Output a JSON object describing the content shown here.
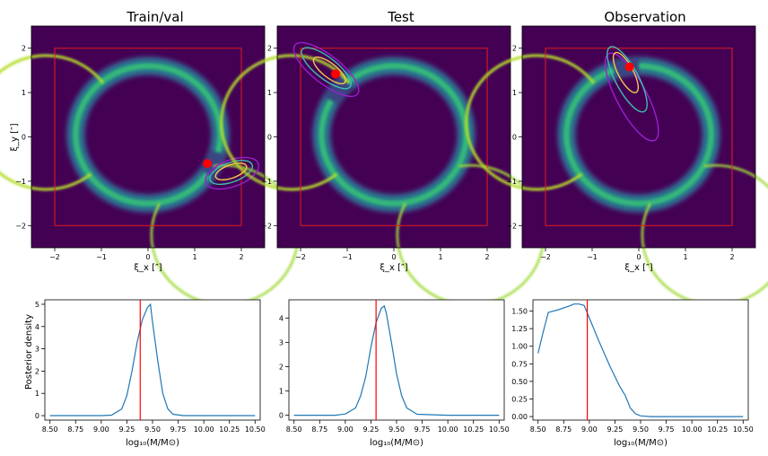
{
  "panels": [
    {
      "title": "Train/val",
      "xlabel": "ξ_x [″]",
      "ylabel": "ξ_y [″]",
      "xticks": [
        "−2",
        "−1",
        "0",
        "1",
        "2"
      ],
      "yticks": [
        "−2",
        "−1",
        "0",
        "1",
        "2"
      ],
      "ring_gap_angle_deg": -25,
      "box": [
        -2,
        2
      ],
      "point": {
        "x": 1.27,
        "y": -0.6
      },
      "contours": [
        {
          "color": "#9b1fd1",
          "cx": 1.8,
          "cy": -0.82,
          "rx": 0.6,
          "ry": 0.3,
          "rot": 20
        },
        {
          "color": "#3fbfb0",
          "cx": 1.78,
          "cy": -0.8,
          "rx": 0.48,
          "ry": 0.22,
          "rot": 20
        },
        {
          "color": "#f2c94c",
          "cx": 1.78,
          "cy": -0.78,
          "rx": 0.35,
          "ry": 0.15,
          "rot": 20
        }
      ]
    },
    {
      "title": "Test",
      "xlabel": "ξ_x [″]",
      "ylabel": "",
      "xticks": [
        "−2",
        "−1",
        "0",
        "1",
        "2"
      ],
      "yticks": [
        "−2",
        "−1",
        "0",
        "1",
        "2"
      ],
      "ring_gap_angle_deg": 140,
      "box": [
        -2,
        2
      ],
      "point": {
        "x": -1.25,
        "y": 1.42
      },
      "contours": [
        {
          "color": "#9b1fd1",
          "cx": -1.45,
          "cy": 1.52,
          "rx": 0.85,
          "ry": 0.32,
          "rot": -38
        },
        {
          "color": "#3fbfb0",
          "cx": -1.45,
          "cy": 1.55,
          "rx": 0.65,
          "ry": 0.24,
          "rot": -38
        },
        {
          "color": "#f2c94c",
          "cx": -1.38,
          "cy": 1.5,
          "rx": 0.42,
          "ry": 0.16,
          "rot": -38
        }
      ]
    },
    {
      "title": "Observation",
      "xlabel": "ξ_x [″]",
      "ylabel": "",
      "xticks": [
        "−2",
        "−1",
        "0",
        "1",
        "2"
      ],
      "yticks": [
        "−2",
        "−1",
        "0",
        "1",
        "2"
      ],
      "ring_gap_angle_deg": 100,
      "box": [
        -2,
        2
      ],
      "point": {
        "x": -0.2,
        "y": 1.58
      },
      "contours": [
        {
          "color": "#9b1fd1",
          "cx": -0.15,
          "cy": 0.9,
          "rx": 1.05,
          "ry": 0.34,
          "rot": -62
        },
        {
          "color": "#3fbfb0",
          "cx": -0.25,
          "cy": 1.3,
          "rx": 0.78,
          "ry": 0.26,
          "rot": -62
        },
        {
          "color": "#f2c94c",
          "cx": -0.28,
          "cy": 1.45,
          "rx": 0.48,
          "ry": 0.17,
          "rot": -62
        }
      ]
    }
  ],
  "posterior": [
    {
      "ylabel": "Posterior density",
      "xlabel": "log₁₀(M/M⊙)"
    },
    {
      "ylabel": "",
      "xlabel": "log₁₀(M/M⊙)"
    },
    {
      "ylabel": "",
      "xlabel": "log₁₀(M/M⊙)"
    }
  ],
  "chart_data": [
    {
      "type": "heatmap",
      "title": "Train/val",
      "xlim": [
        -2.5,
        2.5
      ],
      "ylim": [
        -2.5,
        2.5
      ],
      "point": [
        1.27,
        -0.6
      ]
    },
    {
      "type": "heatmap",
      "title": "Test",
      "xlim": [
        -2.5,
        2.5
      ],
      "ylim": [
        -2.5,
        2.5
      ],
      "point": [
        -1.25,
        1.42
      ]
    },
    {
      "type": "heatmap",
      "title": "Observation",
      "xlim": [
        -2.5,
        2.5
      ],
      "ylim": [
        -2.5,
        2.5
      ],
      "point": [
        -0.2,
        1.58
      ]
    },
    {
      "type": "line",
      "xlim": [
        8.45,
        10.55
      ],
      "ylim": [
        -0.2,
        5.2
      ],
      "xticks": [
        "8.50",
        "8.75",
        "9.00",
        "9.25",
        "9.50",
        "9.75",
        "10.00",
        "10.25",
        "10.50"
      ],
      "yticks": [
        0,
        1,
        2,
        3,
        4,
        5
      ],
      "ytick_labels": [
        "0",
        "1",
        "2",
        "3",
        "4",
        "5"
      ],
      "vline": 9.38,
      "x": [
        8.5,
        9.0,
        9.1,
        9.2,
        9.25,
        9.3,
        9.35,
        9.4,
        9.45,
        9.48,
        9.5,
        9.55,
        9.6,
        9.65,
        9.7,
        9.8,
        10.0,
        10.5
      ],
      "y": [
        0,
        0,
        0.02,
        0.3,
        0.9,
        2.0,
        3.3,
        4.3,
        4.85,
        5.0,
        4.2,
        2.5,
        1.0,
        0.3,
        0.06,
        0,
        0,
        0
      ]
    },
    {
      "type": "line",
      "xlim": [
        8.45,
        10.55
      ],
      "ylim": [
        -0.2,
        4.75
      ],
      "xticks": [
        "8.50",
        "8.75",
        "9.00",
        "9.25",
        "9.50",
        "9.75",
        "10.00",
        "10.25",
        "10.50"
      ],
      "yticks": [
        0,
        1,
        2,
        3,
        4
      ],
      "ytick_labels": [
        "0",
        "1",
        "2",
        "3",
        "4"
      ],
      "vline": 9.3,
      "x": [
        8.5,
        8.9,
        9.0,
        9.1,
        9.15,
        9.2,
        9.25,
        9.3,
        9.35,
        9.38,
        9.4,
        9.45,
        9.5,
        9.55,
        9.6,
        9.7,
        10.0,
        10.5
      ],
      "y": [
        0,
        0,
        0.05,
        0.3,
        0.8,
        1.6,
        2.8,
        3.8,
        4.4,
        4.5,
        4.2,
        3.0,
        1.7,
        0.8,
        0.3,
        0.04,
        0,
        0
      ]
    },
    {
      "type": "line",
      "xlim": [
        8.45,
        10.55
      ],
      "ylim": [
        -0.05,
        1.66
      ],
      "xticks": [
        "8.50",
        "8.75",
        "9.00",
        "9.25",
        "9.50",
        "9.75",
        "10.00",
        "10.25",
        "10.50"
      ],
      "yticks": [
        0,
        0.25,
        0.5,
        0.75,
        1.0,
        1.25,
        1.5
      ],
      "ytick_labels": [
        "0.00",
        "0.25",
        "0.50",
        "0.75",
        "1.00",
        "1.25",
        "1.50"
      ],
      "vline": 8.98,
      "x": [
        8.5,
        8.55,
        8.6,
        8.7,
        8.8,
        8.85,
        8.9,
        8.95,
        9.0,
        9.1,
        9.2,
        9.3,
        9.35,
        9.4,
        9.45,
        9.5,
        9.6,
        10.0,
        10.5
      ],
      "y": [
        0.9,
        1.2,
        1.48,
        1.52,
        1.57,
        1.6,
        1.6,
        1.58,
        1.4,
        1.05,
        0.72,
        0.42,
        0.3,
        0.12,
        0.04,
        0.01,
        0,
        0,
        0
      ]
    }
  ],
  "colors": {
    "background": "#440154",
    "box": "#e41a1c",
    "point": "#ff0000",
    "line": "#1f77b4",
    "vline": "#ff0000"
  }
}
